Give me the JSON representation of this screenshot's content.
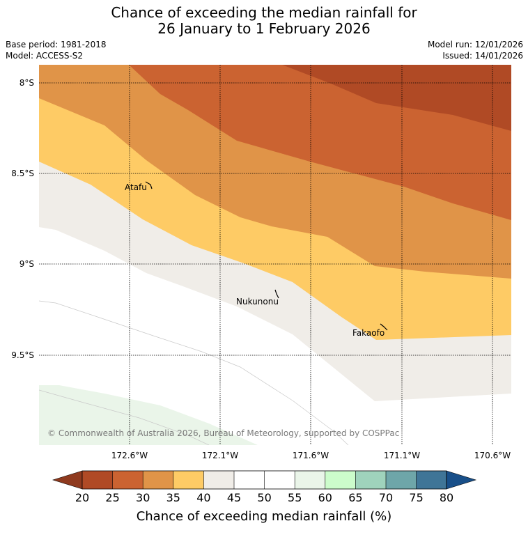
{
  "title_line1": "Chance of exceeding the median rainfall for",
  "title_line2": "26 January to 1 February 2026",
  "base_period": "Base period: 1981-2018",
  "model": "Model: ACCESS-S2",
  "model_run": "Model run: 12/01/2026",
  "issued": "Issued: 14/01/2026",
  "copyright": "© Commonwealth of Australia 2026, Bureau of Meteorology, supported by COSPPac",
  "lat_labels": [
    "8°S",
    "8.5°S",
    "9°S",
    "9.5°S"
  ],
  "lon_labels": [
    "172.6°W",
    "172.1°W",
    "171.6°W",
    "171.1°W",
    "170.6°W"
  ],
  "places": [
    {
      "name": "Atafu"
    },
    {
      "name": "Nukunonu"
    },
    {
      "name": "Fakaofo"
    }
  ],
  "colorbar": {
    "title": "Chance of exceeding median rainfall (%)",
    "ticks": [
      "20",
      "25",
      "30",
      "35",
      "40",
      "45",
      "50",
      "55",
      "60",
      "65",
      "70",
      "75",
      "80"
    ],
    "colors": {
      "lt20": "#8f3a1e",
      "c20_25": "#b04a25",
      "c25_30": "#cb6331",
      "c30_35": "#e09448",
      "c35_40": "#fecb65",
      "c40_45": "#f0ede8",
      "c45_50": "#ffffff",
      "c50_55": "#ffffff",
      "c55_60": "#eaf5e9",
      "c60_65": "#ccfccb",
      "c65_70": "#9fd3bc",
      "c70_75": "#6ea6a9",
      "c75_80": "#3f7597",
      "gt80": "#184f89"
    }
  }
}
